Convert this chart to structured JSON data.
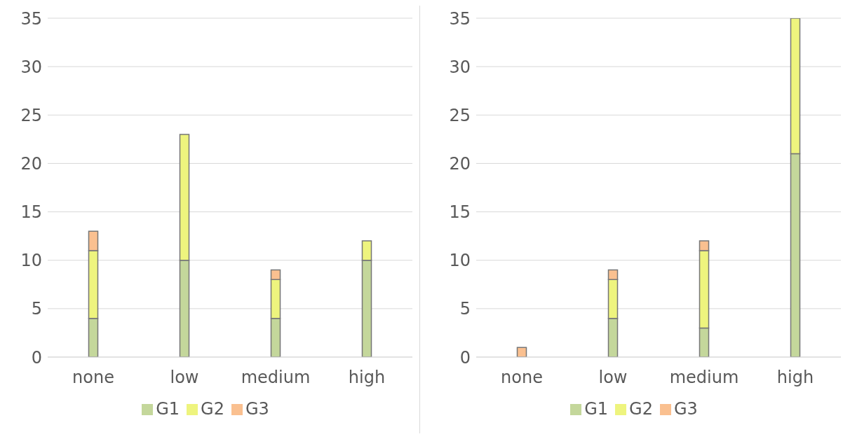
{
  "chart_data": [
    {
      "type": "bar",
      "stacked": true,
      "categories": [
        "none",
        "low",
        "medium",
        "high"
      ],
      "series": [
        {
          "name": "G1",
          "color": "#c4d79b",
          "values": [
            4,
            10,
            4,
            10
          ]
        },
        {
          "name": "G2",
          "color": "#eef47e",
          "values": [
            7,
            13,
            4,
            2
          ]
        },
        {
          "name": "G3",
          "color": "#fac090",
          "values": [
            2,
            0,
            1,
            0
          ]
        }
      ],
      "ylim": [
        0,
        35
      ],
      "yticks": [
        0,
        5,
        10,
        15,
        20,
        25,
        30,
        35
      ],
      "grid": "y",
      "legend": "bottom"
    },
    {
      "type": "bar",
      "stacked": true,
      "categories": [
        "none",
        "low",
        "medium",
        "high"
      ],
      "series": [
        {
          "name": "G1",
          "color": "#c4d79b",
          "values": [
            0,
            4,
            3,
            21
          ]
        },
        {
          "name": "G2",
          "color": "#eef47e",
          "values": [
            0,
            4,
            8,
            14
          ]
        },
        {
          "name": "G3",
          "color": "#fac090",
          "values": [
            1,
            1,
            1,
            0
          ]
        }
      ],
      "ylim": [
        0,
        35
      ],
      "yticks": [
        0,
        5,
        10,
        15,
        20,
        25,
        30,
        35
      ],
      "grid": "y",
      "legend": "bottom"
    }
  ]
}
